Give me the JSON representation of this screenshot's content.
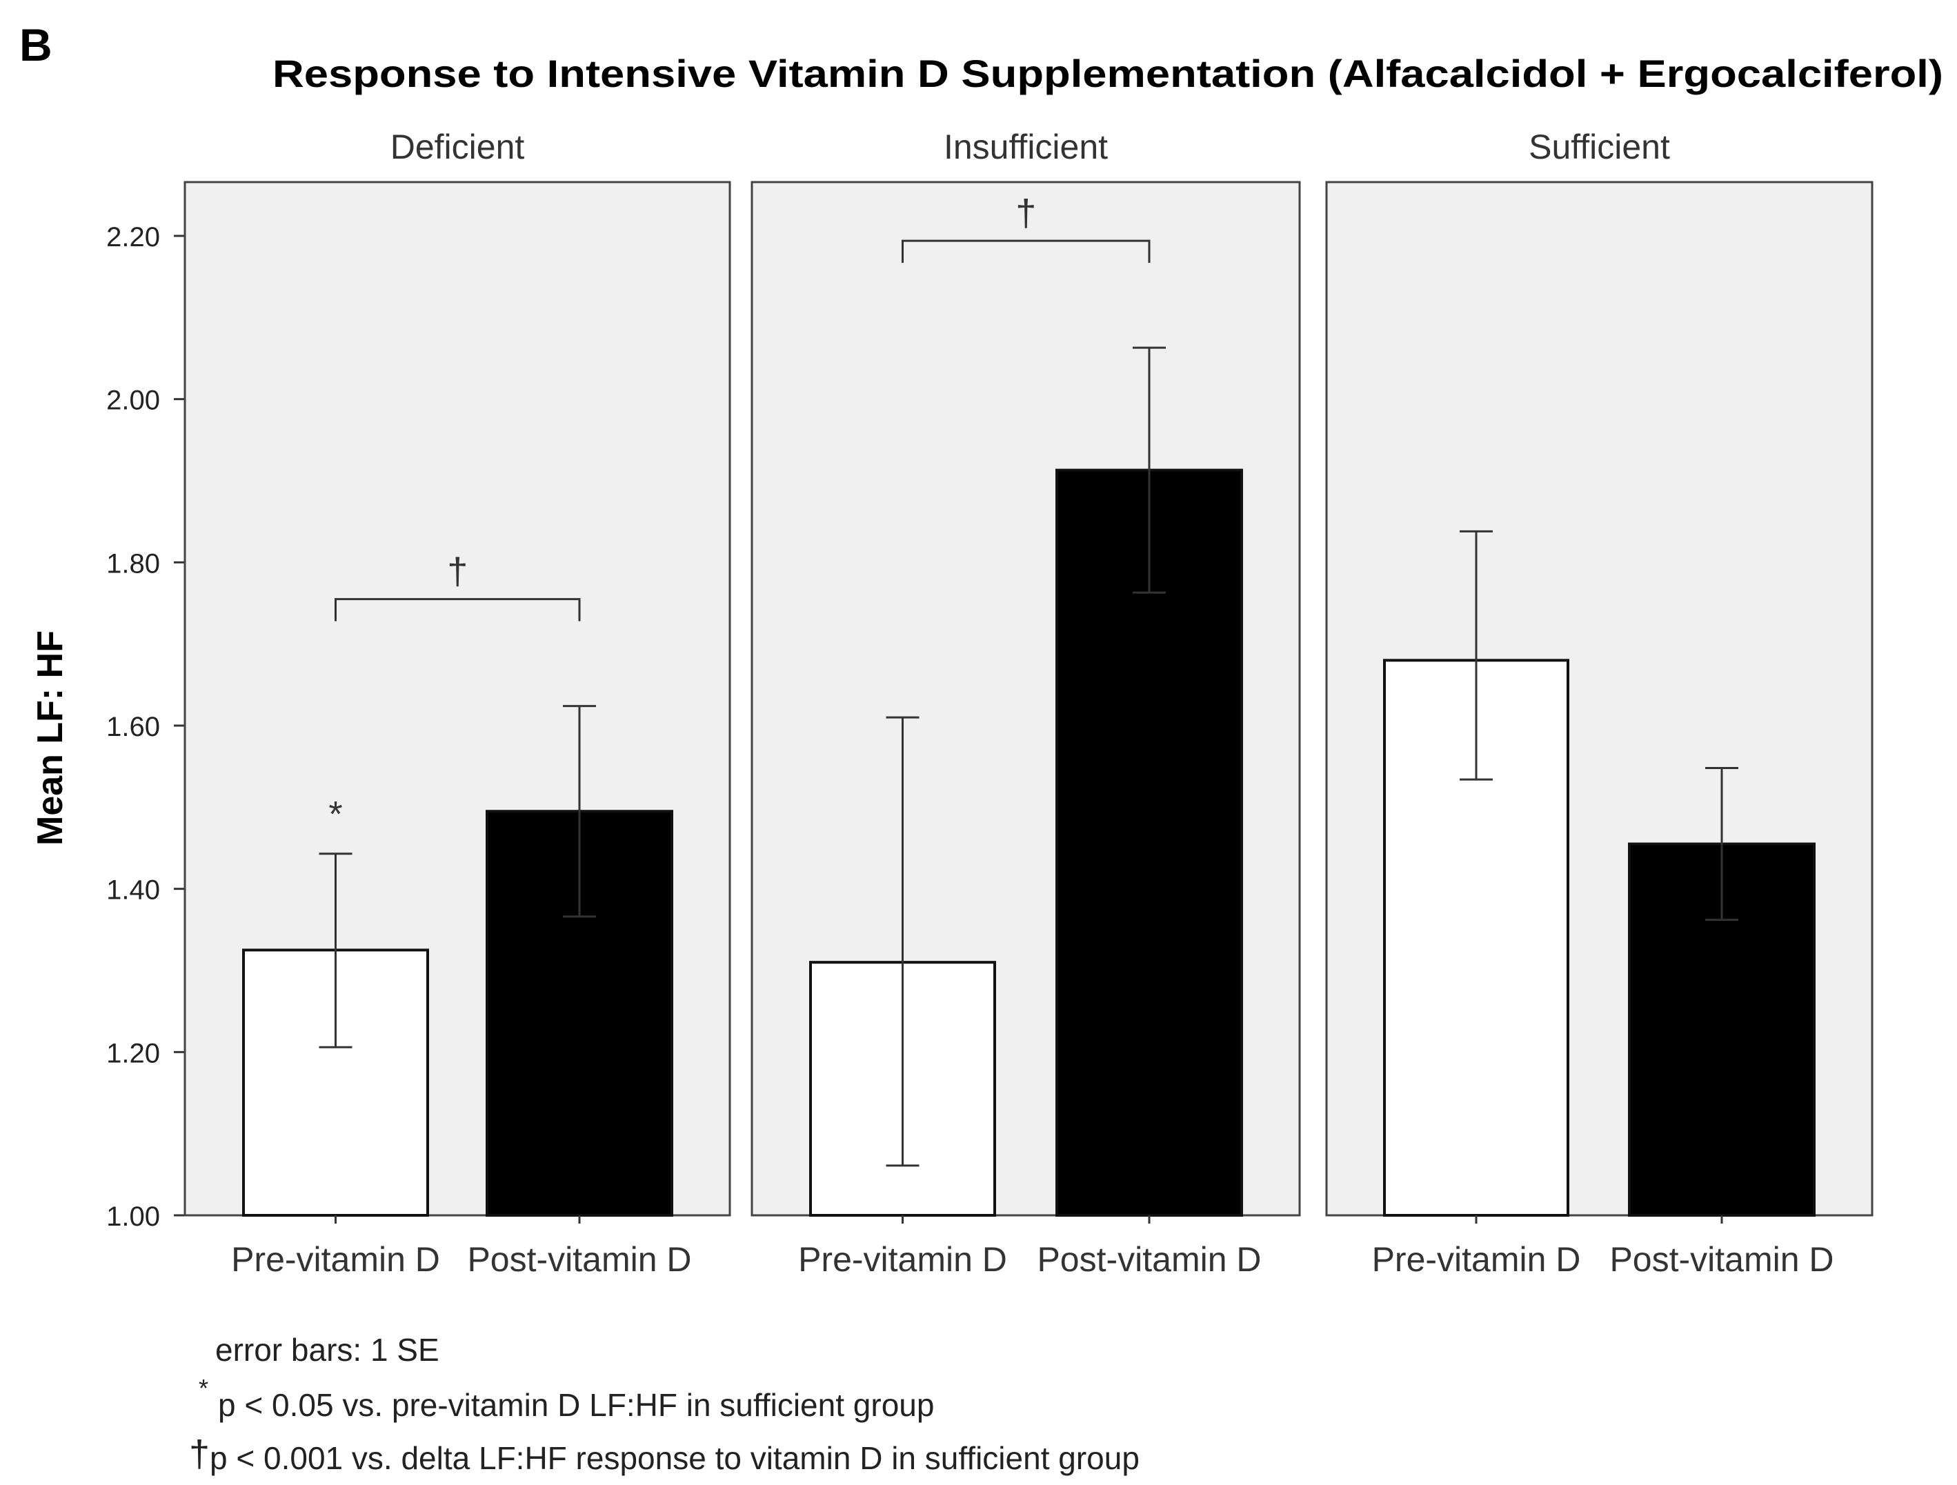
{
  "panel_letter": "B",
  "chart_data": {
    "type": "bar",
    "title": "Response to Intensive Vitamin D Supplementation (Alfacalcidol + Ergocalciferol)",
    "ylabel": "Mean LF: HF",
    "ylim": [
      1.0,
      2.3
    ],
    "yticks": [
      1.0,
      1.2,
      1.4,
      1.6,
      1.8,
      2.0,
      2.2
    ],
    "ytick_labels": [
      "1.00",
      "1.20",
      "1.40",
      "1.60",
      "1.80",
      "2.00",
      "2.20"
    ],
    "categories": [
      "Pre-vitamin D",
      "Post-vitamin D"
    ],
    "bar_colors": [
      "#ffffff",
      "#000000"
    ],
    "panels": [
      {
        "label": "Deficient",
        "values": [
          1.325,
          1.495
        ],
        "se_upper": [
          1.443,
          1.624
        ],
        "se_lower": [
          1.206,
          1.366
        ],
        "bracket_mark": "†",
        "bar_marks": [
          "*",
          ""
        ]
      },
      {
        "label": "Insufficient",
        "values": [
          1.31,
          1.913
        ],
        "se_upper": [
          1.61,
          2.063
        ],
        "se_lower": [
          1.061,
          1.763
        ],
        "bracket_mark": "†",
        "bar_marks": [
          "",
          ""
        ]
      },
      {
        "label": "Sufficient",
        "values": [
          1.68,
          1.455
        ],
        "se_upper": [
          1.838,
          1.548
        ],
        "se_lower": [
          1.534,
          1.362
        ],
        "bracket_mark": "",
        "bar_marks": [
          "",
          ""
        ]
      }
    ],
    "footnotes": {
      "error_bars": "error bars: 1 SE",
      "star_symbol": "*",
      "star_text": "p < 0.05 vs. pre-vitamin D LF:HF in sufficient group",
      "dagger_symbol": "†",
      "dagger_text": "p < 0.001 vs. delta LF:HF response to vitamin D in sufficient group"
    }
  }
}
